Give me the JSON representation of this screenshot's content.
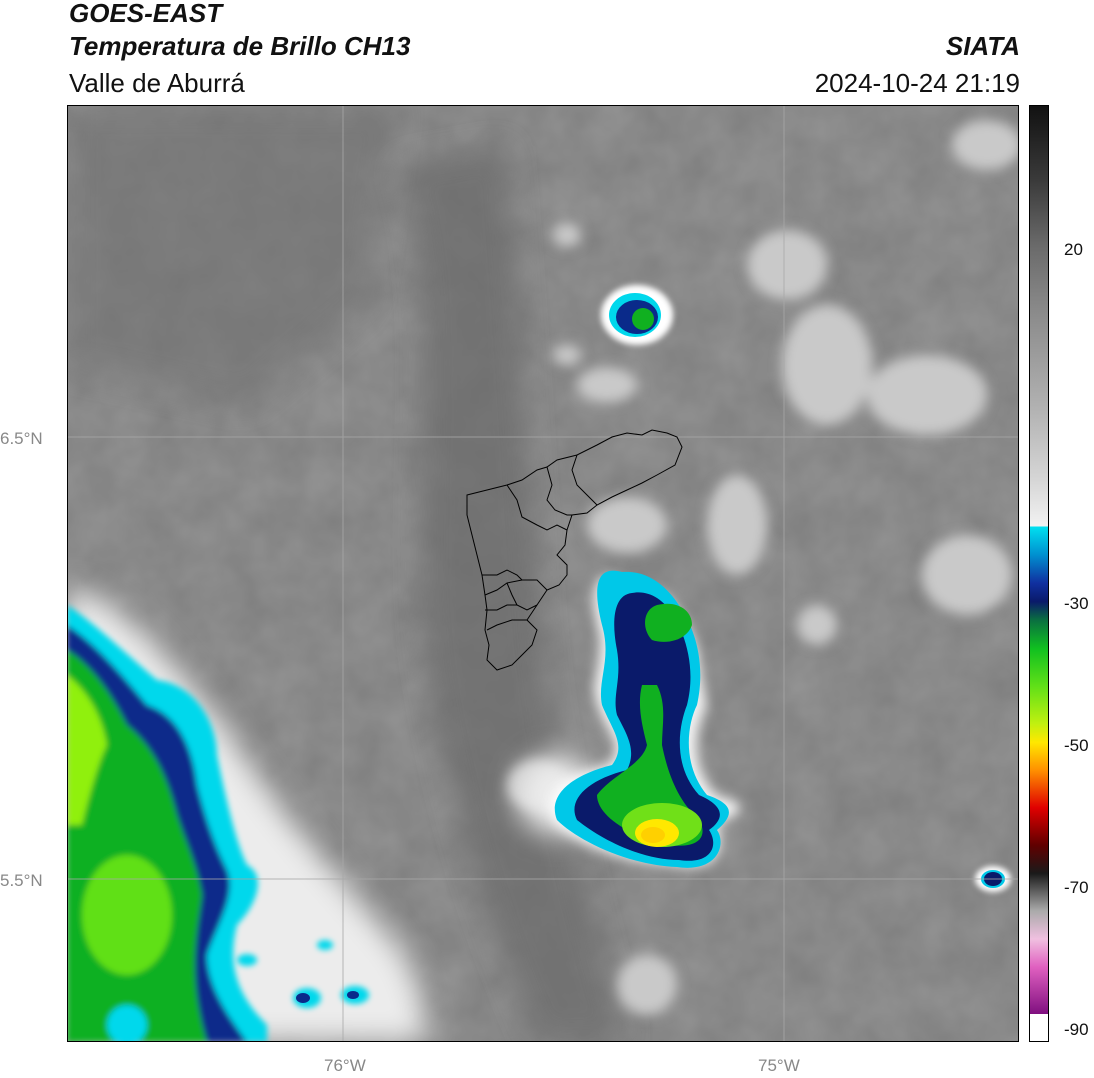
{
  "header": {
    "satellite": "GOES-EAST",
    "product": "Temperatura de Brillo CH13",
    "region": "Valle de Aburrá",
    "organization": "SIATA",
    "datetime": "2024-10-24 21:19"
  },
  "map": {
    "lat_labels": [
      "6.5°N",
      "5.5°N"
    ],
    "lon_labels": [
      "76°W",
      "75°W"
    ]
  },
  "colorbar": {
    "tick_labels": [
      "20",
      "-30",
      "-50",
      "-70",
      "-90"
    ],
    "colors": {
      "warm_dark": "#1a1a1a",
      "gray": "#8a8a8a",
      "light": "#f2f2f2",
      "cyan": "#00e0f0",
      "blue": "#1030a0",
      "navy": "#0a1a6a",
      "green": "#10c020",
      "lime": "#90f010",
      "yellow": "#ffe800",
      "orange": "#ff8c00",
      "red": "#e00000",
      "maroon": "#600000",
      "magenta": "#e060c0",
      "purple": "#801080"
    }
  }
}
